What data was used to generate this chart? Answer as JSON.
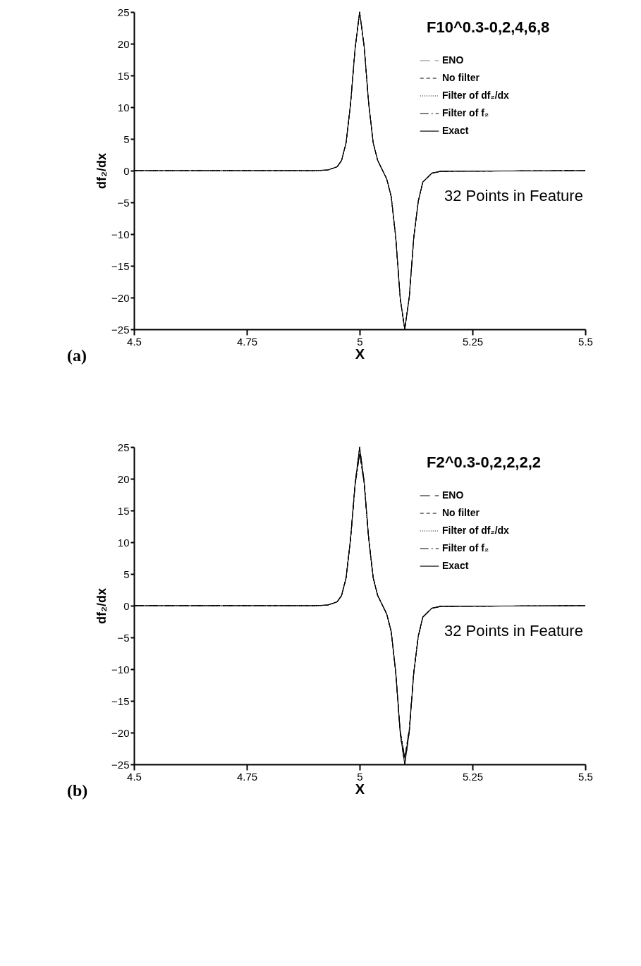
{
  "chart_data": [
    {
      "type": "line",
      "title": "F10^0.3-0,2,4,6,8",
      "xlabel": "X",
      "ylabel": "df₂/dx",
      "annotations": [
        "32 Points in Feature",
        "(a)"
      ],
      "legend": "top right",
      "grid": false,
      "xlim": [
        4.5,
        5.5
      ],
      "ylim": [
        -25,
        25
      ],
      "xticks": [
        4.5,
        4.75,
        5,
        5.25,
        5.5
      ],
      "yticks": [
        -25,
        -20,
        -15,
        -10,
        -5,
        0,
        5,
        10,
        15,
        20,
        25
      ],
      "x": [
        4.5,
        4.9,
        4.93,
        4.95,
        4.96,
        4.97,
        4.98,
        4.99,
        5.0,
        5.01,
        5.02,
        5.03,
        5.04,
        5.06,
        5.07,
        5.08,
        5.09,
        5.1,
        5.11,
        5.12,
        5.13,
        5.14,
        5.16,
        5.18,
        5.5
      ],
      "series": [
        {
          "name": "ENO",
          "color": "#808080",
          "line_style": "longdash",
          "values": [
            0,
            0,
            0.1,
            0.6,
            1.6,
            4.4,
            10.6,
            19.3,
            25,
            19.6,
            10.6,
            4.4,
            1.6,
            -1.3,
            -4.1,
            -10.5,
            -20.2,
            -25,
            -19.9,
            -10.5,
            -4.8,
            -1.8,
            -0.4,
            -0.1,
            0
          ]
        },
        {
          "name": "No filter",
          "color": "#000000",
          "line_style": "dashed",
          "values": [
            0,
            0,
            0.1,
            0.6,
            1.6,
            4.4,
            10.6,
            19.3,
            25,
            19.6,
            10.6,
            4.4,
            1.6,
            -1.3,
            -4.1,
            -10.5,
            -20.2,
            -25,
            -19.9,
            -10.5,
            -4.8,
            -1.8,
            -0.4,
            -0.1,
            0
          ]
        },
        {
          "name": "Filter of df₂/dx",
          "color": "#000000",
          "line_style": "dotted",
          "values": [
            0,
            0,
            0.1,
            0.6,
            1.6,
            4.4,
            10.6,
            19.3,
            25,
            19.6,
            10.6,
            4.4,
            1.6,
            -1.3,
            -4.1,
            -10.5,
            -20.2,
            -25,
            -19.9,
            -10.5,
            -4.8,
            -1.8,
            -0.4,
            -0.1,
            0
          ]
        },
        {
          "name": "Filter of f₂",
          "color": "#000000",
          "line_style": "dashdot",
          "values": [
            0,
            0,
            0.1,
            0.6,
            1.6,
            4.4,
            10.6,
            19.3,
            25,
            19.6,
            10.6,
            4.4,
            1.6,
            -1.3,
            -4.1,
            -10.5,
            -20.2,
            -25,
            -19.9,
            -10.5,
            -4.8,
            -1.8,
            -0.4,
            -0.1,
            0
          ]
        },
        {
          "name": "Exact",
          "color": "#000000",
          "line_style": "solid",
          "values": [
            0,
            0,
            0.1,
            0.6,
            1.6,
            4.4,
            10.6,
            19.3,
            25,
            19.6,
            10.6,
            4.4,
            1.6,
            -1.3,
            -4.1,
            -10.5,
            -20.2,
            -25,
            -19.9,
            -10.5,
            -4.8,
            -1.8,
            -0.4,
            -0.1,
            0
          ]
        }
      ]
    },
    {
      "type": "line",
      "title": "F2^0.3-0,2,2,2,2",
      "xlabel": "X",
      "ylabel": "df₂/dx",
      "annotations": [
        "32 Points in Feature",
        "(b)"
      ],
      "legend": "top right",
      "grid": false,
      "xlim": [
        4.5,
        5.5
      ],
      "ylim": [
        -25,
        25
      ],
      "xticks": [
        4.5,
        4.75,
        5,
        5.25,
        5.5
      ],
      "yticks": [
        -25,
        -20,
        -15,
        -10,
        -5,
        0,
        5,
        10,
        15,
        20,
        25
      ],
      "x": [
        4.5,
        4.9,
        4.93,
        4.95,
        4.96,
        4.97,
        4.98,
        4.99,
        5.0,
        5.01,
        5.02,
        5.03,
        5.04,
        5.06,
        5.07,
        5.08,
        5.09,
        5.1,
        5.11,
        5.12,
        5.13,
        5.14,
        5.16,
        5.18,
        5.5
      ],
      "series": [
        {
          "name": "ENO",
          "color": "#000000",
          "line_style": "longdash",
          "values": [
            0,
            0,
            0.1,
            0.6,
            1.6,
            4.4,
            10.6,
            19.3,
            25,
            19.6,
            10.6,
            4.4,
            1.6,
            -1.3,
            -4.1,
            -10.5,
            -20.2,
            -25,
            -19.9,
            -10.5,
            -4.8,
            -1.8,
            -0.4,
            -0.1,
            0
          ]
        },
        {
          "name": "No filter",
          "color": "#000000",
          "line_style": "dashed",
          "values": [
            0,
            0,
            0.1,
            0.6,
            1.6,
            4.4,
            10.6,
            19.0,
            24,
            19.3,
            10.6,
            4.4,
            1.6,
            -1.3,
            -4.1,
            -10.5,
            -19.8,
            -24,
            -19.5,
            -10.5,
            -4.8,
            -1.8,
            -0.4,
            -0.1,
            0
          ]
        },
        {
          "name": "Filter of df₂/dx",
          "color": "#000000",
          "line_style": "dotted",
          "values": [
            0,
            0,
            0.1,
            0.6,
            1.6,
            4.4,
            10.6,
            19.0,
            24,
            19.3,
            10.6,
            4.4,
            1.6,
            -1.3,
            -4.1,
            -10.5,
            -19.8,
            -24,
            -19.5,
            -10.5,
            -4.8,
            -1.8,
            -0.4,
            -0.1,
            0
          ]
        },
        {
          "name": "Filter of f₂",
          "color": "#000000",
          "line_style": "dashdot",
          "values": [
            0,
            0,
            0.1,
            0.6,
            1.6,
            4.4,
            10.6,
            19.0,
            24,
            19.3,
            10.6,
            4.4,
            1.6,
            -1.3,
            -4.1,
            -10.5,
            -19.8,
            -24,
            -19.5,
            -10.5,
            -4.8,
            -1.8,
            -0.4,
            -0.1,
            0
          ]
        },
        {
          "name": "Exact",
          "color": "#000000",
          "line_style": "solid",
          "values": [
            0,
            0,
            0.1,
            0.6,
            1.6,
            4.4,
            10.6,
            19.3,
            25,
            19.6,
            10.6,
            4.4,
            1.6,
            -1.3,
            -4.1,
            -10.5,
            -20.2,
            -25,
            -19.9,
            -10.5,
            -4.8,
            -1.8,
            -0.4,
            -0.1,
            0
          ]
        }
      ]
    }
  ]
}
